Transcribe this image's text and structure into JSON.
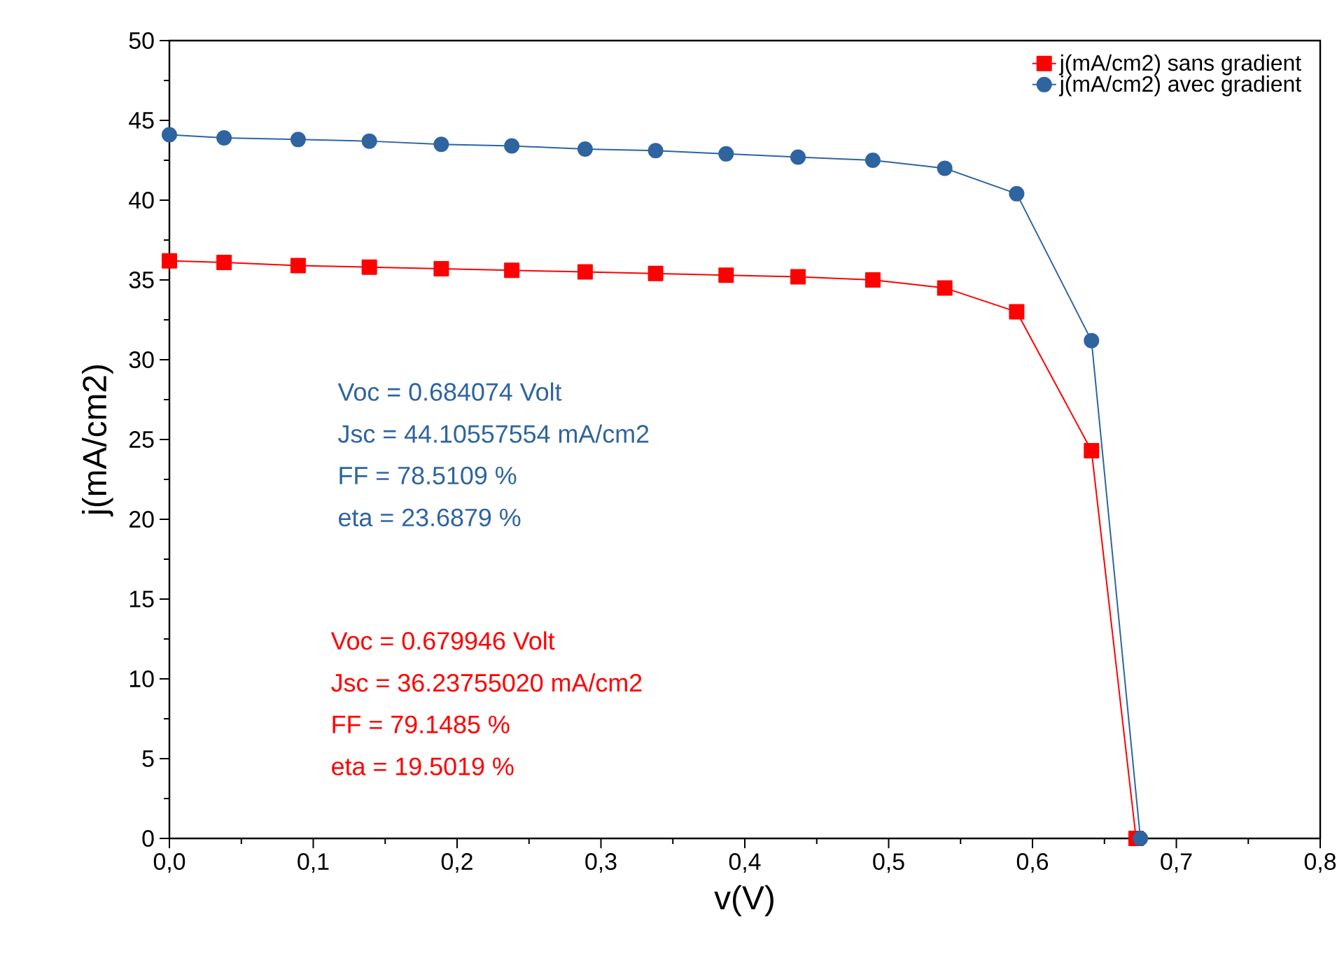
{
  "chart_data": {
    "type": "line",
    "xlabel": "v(V)",
    "ylabel": "j(mA/cm2)",
    "x": [
      0,
      0.038,
      0.0895,
      0.139,
      0.189,
      0.238,
      0.289,
      0.338,
      0.387,
      0.437,
      0.489,
      0.539,
      0.589,
      0.641,
      0.675
    ],
    "series": [
      {
        "name": "j(mA/cm2) sans gradient",
        "color": "#ff0000",
        "marker": "square",
        "x": [
          0,
          0.038,
          0.0895,
          0.139,
          0.189,
          0.238,
          0.289,
          0.338,
          0.387,
          0.437,
          0.489,
          0.539,
          0.589,
          0.641,
          0.672
        ],
        "values": [
          36.2,
          36.1,
          35.9,
          35.8,
          35.7,
          35.6,
          35.5,
          35.4,
          35.3,
          35.2,
          35.0,
          34.5,
          33.0,
          24.3,
          0
        ]
      },
      {
        "name": "j(mA/cm2) avec gradient",
        "color": "#2e64a0",
        "marker": "circle",
        "values": [
          44.1,
          43.9,
          43.8,
          43.7,
          43.5,
          43.4,
          43.2,
          43.1,
          42.9,
          42.7,
          42.5,
          42.0,
          40.4,
          31.2,
          0
        ]
      }
    ],
    "xlim": [
      0,
      0.8
    ],
    "ylim": [
      0,
      50
    ],
    "xticks": [
      {
        "value": 0,
        "label": "0,0"
      },
      {
        "value": 0.1,
        "label": "0,1"
      },
      {
        "value": 0.2,
        "label": "0,2"
      },
      {
        "value": 0.3,
        "label": "0,3"
      },
      {
        "value": 0.4,
        "label": "0,4"
      },
      {
        "value": 0.5,
        "label": "0,5"
      },
      {
        "value": 0.6,
        "label": "0,6"
      },
      {
        "value": 0.7,
        "label": "0,7"
      },
      {
        "value": 0.8,
        "label": "0,8"
      }
    ],
    "yticks": [
      0,
      5,
      10,
      15,
      20,
      25,
      30,
      35,
      40,
      45,
      50
    ],
    "legend": "top right",
    "grid": false,
    "line_style": "solid",
    "annotations": [
      "Voc =       0.684074     Volt",
      "Jsc =       44.10557554 mA/cm2",
      "FF =        78.5109         %",
      "eta =       23.6879         %",
      "Voc =       0.679946     Volt",
      "Jsc =       36.23755020 mA/cm2",
      "FF =        79.1485         %",
      "eta =       19.5019         %"
    ]
  }
}
